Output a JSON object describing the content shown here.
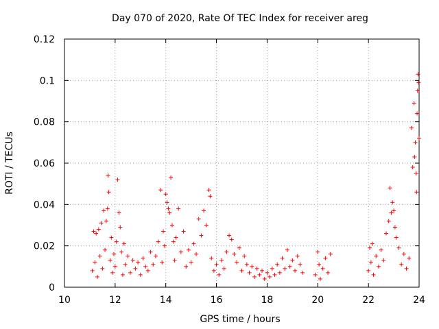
{
  "chart_data": {
    "type": "scatter",
    "title": "Day 070 of 2020, Rate Of TEC Index for receiver areg",
    "xlabel": "GPS time / hours",
    "ylabel": "ROTI / TECUs",
    "xlim": [
      10,
      24
    ],
    "ylim": [
      0,
      0.12
    ],
    "x_ticks": [
      10,
      12,
      14,
      16,
      18,
      20,
      22,
      24
    ],
    "y_ticks": [
      0,
      0.02,
      0.04,
      0.06,
      0.08,
      0.1,
      0.12
    ],
    "x_tick_labels": [
      "10",
      "12",
      "14",
      "16",
      "18",
      "20",
      "22",
      "24"
    ],
    "y_tick_labels": [
      "0",
      "0.02",
      "0.04",
      "0.06",
      "0.08",
      "0.1",
      "0.12"
    ],
    "grid": true,
    "marker": "+",
    "series": [
      {
        "color": "#ff0000",
        "points": [
          [
            11.1,
            0.008
          ],
          [
            11.15,
            0.027
          ],
          [
            11.2,
            0.012
          ],
          [
            11.25,
            0.026
          ],
          [
            11.3,
            0.005
          ],
          [
            11.35,
            0.028
          ],
          [
            11.4,
            0.015
          ],
          [
            11.45,
            0.031
          ],
          [
            11.5,
            0.009
          ],
          [
            11.55,
            0.037
          ],
          [
            11.6,
            0.018
          ],
          [
            11.65,
            0.032
          ],
          [
            11.7,
            0.038
          ],
          [
            11.72,
            0.054
          ],
          [
            11.75,
            0.046
          ],
          [
            11.8,
            0.013
          ],
          [
            11.85,
            0.024
          ],
          [
            11.9,
            0.007
          ],
          [
            11.95,
            0.016
          ],
          [
            12.0,
            0.01
          ],
          [
            12.05,
            0.022
          ],
          [
            12.1,
            0.052
          ],
          [
            12.15,
            0.036
          ],
          [
            12.2,
            0.029
          ],
          [
            12.25,
            0.017
          ],
          [
            12.3,
            0.006
          ],
          [
            12.35,
            0.021
          ],
          [
            12.4,
            0.011
          ],
          [
            12.5,
            0.015
          ],
          [
            12.6,
            0.007
          ],
          [
            12.7,
            0.013
          ],
          [
            12.8,
            0.009
          ],
          [
            12.9,
            0.012
          ],
          [
            13.0,
            0.006
          ],
          [
            13.1,
            0.014
          ],
          [
            13.2,
            0.01
          ],
          [
            13.3,
            0.008
          ],
          [
            13.4,
            0.017
          ],
          [
            13.5,
            0.011
          ],
          [
            13.6,
            0.015
          ],
          [
            13.7,
            0.022
          ],
          [
            13.8,
            0.047
          ],
          [
            13.85,
            0.012
          ],
          [
            13.9,
            0.027
          ],
          [
            13.95,
            0.02
          ],
          [
            14.0,
            0.045
          ],
          [
            14.05,
            0.041
          ],
          [
            14.1,
            0.038
          ],
          [
            14.15,
            0.036
          ],
          [
            14.2,
            0.053
          ],
          [
            14.25,
            0.03
          ],
          [
            14.3,
            0.022
          ],
          [
            14.35,
            0.013
          ],
          [
            14.4,
            0.024
          ],
          [
            14.5,
            0.038
          ],
          [
            14.6,
            0.017
          ],
          [
            14.7,
            0.027
          ],
          [
            14.8,
            0.01
          ],
          [
            14.9,
            0.018
          ],
          [
            15.0,
            0.012
          ],
          [
            15.1,
            0.021
          ],
          [
            15.2,
            0.016
          ],
          [
            15.3,
            0.033
          ],
          [
            15.4,
            0.025
          ],
          [
            15.5,
            0.037
          ],
          [
            15.6,
            0.03
          ],
          [
            15.7,
            0.047
          ],
          [
            15.75,
            0.044
          ],
          [
            15.8,
            0.014
          ],
          [
            15.9,
            0.008
          ],
          [
            16.0,
            0.011
          ],
          [
            16.1,
            0.006
          ],
          [
            16.2,
            0.013
          ],
          [
            16.3,
            0.009
          ],
          [
            16.4,
            0.017
          ],
          [
            16.5,
            0.025
          ],
          [
            16.6,
            0.023
          ],
          [
            16.7,
            0.016
          ],
          [
            16.8,
            0.012
          ],
          [
            16.9,
            0.019
          ],
          [
            17.0,
            0.008
          ],
          [
            17.1,
            0.015
          ],
          [
            17.2,
            0.011
          ],
          [
            17.3,
            0.007
          ],
          [
            17.4,
            0.01
          ],
          [
            17.5,
            0.005
          ],
          [
            17.6,
            0.009
          ],
          [
            17.7,
            0.006
          ],
          [
            17.8,
            0.008
          ],
          [
            17.9,
            0.004
          ],
          [
            18.0,
            0.007
          ],
          [
            18.1,
            0.005
          ],
          [
            18.2,
            0.009
          ],
          [
            18.3,
            0.006
          ],
          [
            18.4,
            0.011
          ],
          [
            18.5,
            0.007
          ],
          [
            18.6,
            0.014
          ],
          [
            18.7,
            0.009
          ],
          [
            18.8,
            0.018
          ],
          [
            18.9,
            0.01
          ],
          [
            19.0,
            0.013
          ],
          [
            19.1,
            0.008
          ],
          [
            19.2,
            0.015
          ],
          [
            19.3,
            0.011
          ],
          [
            19.4,
            0.007
          ],
          [
            19.9,
            0.006
          ],
          [
            20.0,
            0.017
          ],
          [
            20.05,
            0.011
          ],
          [
            20.1,
            0.004
          ],
          [
            20.2,
            0.009
          ],
          [
            20.3,
            0.014
          ],
          [
            20.4,
            0.007
          ],
          [
            20.5,
            0.016
          ],
          [
            22.0,
            0.008
          ],
          [
            22.05,
            0.019
          ],
          [
            22.1,
            0.012
          ],
          [
            22.15,
            0.021
          ],
          [
            22.2,
            0.006
          ],
          [
            22.3,
            0.015
          ],
          [
            22.4,
            0.01
          ],
          [
            22.5,
            0.018
          ],
          [
            22.6,
            0.013
          ],
          [
            22.7,
            0.026
          ],
          [
            22.8,
            0.032
          ],
          [
            22.85,
            0.048
          ],
          [
            22.9,
            0.036
          ],
          [
            22.95,
            0.041
          ],
          [
            23.0,
            0.037
          ],
          [
            23.05,
            0.029
          ],
          [
            23.1,
            0.024
          ],
          [
            23.2,
            0.019
          ],
          [
            23.3,
            0.011
          ],
          [
            23.4,
            0.016
          ],
          [
            23.5,
            0.009
          ],
          [
            23.6,
            0.014
          ],
          [
            23.7,
            0.077
          ],
          [
            23.75,
            0.058
          ],
          [
            23.8,
            0.089
          ],
          [
            23.82,
            0.063
          ],
          [
            23.85,
            0.07
          ],
          [
            23.88,
            0.055
          ],
          [
            23.9,
            0.046
          ],
          [
            23.92,
            0.084
          ],
          [
            23.94,
            0.095
          ],
          [
            23.96,
            0.103
          ],
          [
            23.98,
            0.099
          ],
          [
            24.0,
            0.072
          ]
        ]
      }
    ]
  }
}
